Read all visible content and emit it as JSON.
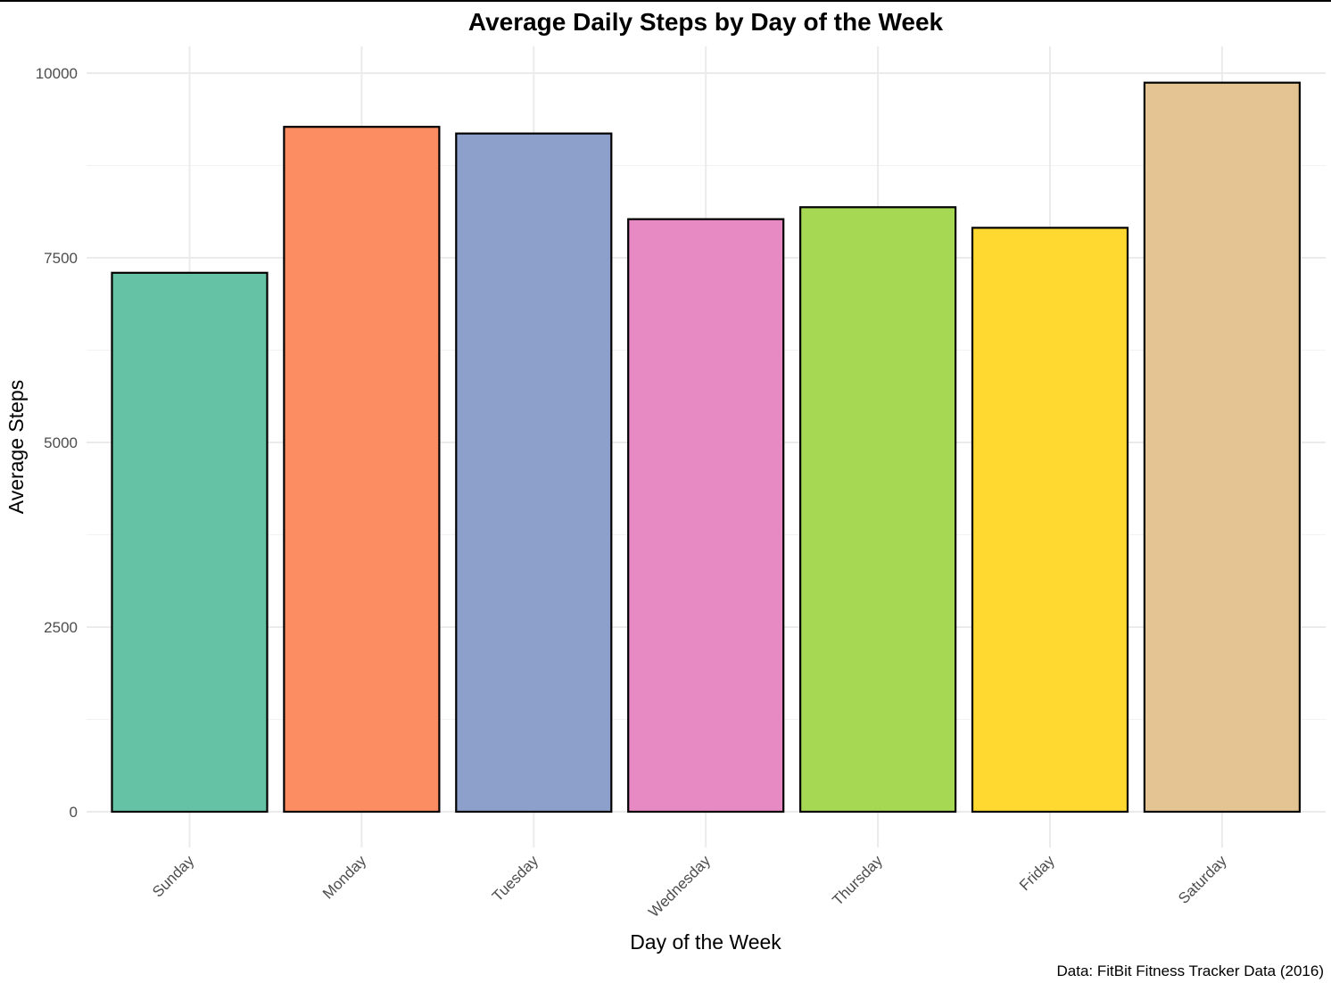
{
  "chart_data": {
    "type": "bar",
    "title": "Average Daily Steps by Day of the Week",
    "xlabel": "Day of the Week",
    "ylabel": "Average Steps",
    "caption": "Data: FitBit Fitness Tracker Data (2016)",
    "categories": [
      "Sunday",
      "Monday",
      "Tuesday",
      "Wednesday",
      "Thursday",
      "Friday",
      "Saturday"
    ],
    "values": [
      7297,
      9273,
      9183,
      8023,
      8185,
      7906,
      9871
    ],
    "colors": [
      "#66C2A5",
      "#FC8D62",
      "#8DA0CB",
      "#E78AC3",
      "#A6D854",
      "#FFD92F",
      "#E5C494"
    ],
    "bar_outline_color": "#000000",
    "yticks": [
      0,
      2500,
      5000,
      7500,
      10000
    ],
    "ylim": [
      0,
      10360
    ],
    "grid": true,
    "legend": "none"
  }
}
